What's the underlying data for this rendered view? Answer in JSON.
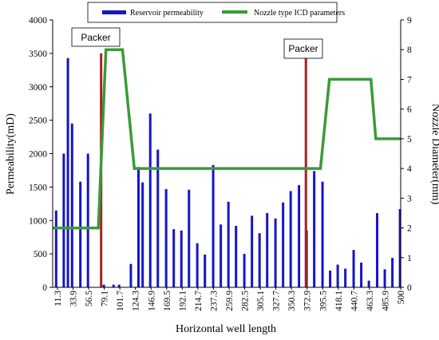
{
  "chart_data": {
    "type": "bar+line",
    "xlabel": "Horizontal well length",
    "ylabel_left": "Permeability(mD)",
    "ylabel_right": "Nozzle Diameter(mm)",
    "ylim_left": [
      0,
      4000
    ],
    "ylim_right": [
      0,
      9
    ],
    "yticks_left": [
      0,
      500,
      1000,
      1500,
      2000,
      2500,
      3000,
      3500,
      4000
    ],
    "yticks_right": [
      0,
      1,
      2,
      3,
      4,
      5,
      6,
      7,
      8,
      9
    ],
    "xlim": [
      0,
      503
    ],
    "xtick_labels": [
      "11.3",
      "33.9",
      "56.5",
      "79.1",
      "101.7",
      "124.3",
      "146.9",
      "169.5",
      "192.1",
      "214.7",
      "237.3",
      "259.9",
      "282.5",
      "305.1",
      "327.7",
      "350.3",
      "372.9",
      "395.5",
      "418.1",
      "440.7",
      "463.3",
      "485.9",
      "500"
    ],
    "legend": {
      "placement": "top-center",
      "items": [
        {
          "label": "Reservoir permeability",
          "color": "#1515c8",
          "kind": "bar"
        },
        {
          "label": "Nozzle type ICD parameters",
          "color": "#3a9a3a",
          "kind": "line"
        }
      ]
    },
    "series": [
      {
        "name": "Reservoir permeability",
        "axis": "left",
        "color": "#1515c8",
        "x": [
          5,
          16,
          22,
          28,
          40,
          51,
          74,
          88,
          96,
          113,
          124,
          130,
          141,
          152,
          164,
          175,
          186,
          197,
          209,
          220,
          232,
          243,
          254,
          265,
          277,
          288,
          299,
          310,
          322,
          333,
          344,
          356,
          367,
          378,
          390,
          401,
          412,
          423,
          435,
          446,
          457,
          469,
          480,
          491,
          502
        ],
        "values": [
          1150,
          2000,
          3430,
          2450,
          1580,
          2000,
          40,
          40,
          40,
          350,
          1800,
          1570,
          2600,
          2060,
          1470,
          870,
          850,
          1460,
          660,
          490,
          1830,
          940,
          1280,
          920,
          500,
          1070,
          810,
          1110,
          1030,
          1270,
          1440,
          1530,
          850,
          1740,
          1580,
          250,
          340,
          280,
          560,
          370,
          100,
          1110,
          270,
          440,
          1170
        ]
      },
      {
        "name": "Nozzle type ICD parameters",
        "axis": "right",
        "color": "#3a9a3a",
        "x": [
          0,
          66,
          77,
          101,
          118,
          387,
          400,
          460,
          467,
          503
        ],
        "values": [
          2,
          2,
          8,
          8,
          4,
          4,
          7,
          7,
          5,
          5
        ]
      }
    ],
    "annotations": [
      {
        "label": "Packer",
        "x": 70,
        "color": "#a82020"
      },
      {
        "label": "Packer",
        "x": 366,
        "color": "#a82020"
      }
    ]
  }
}
